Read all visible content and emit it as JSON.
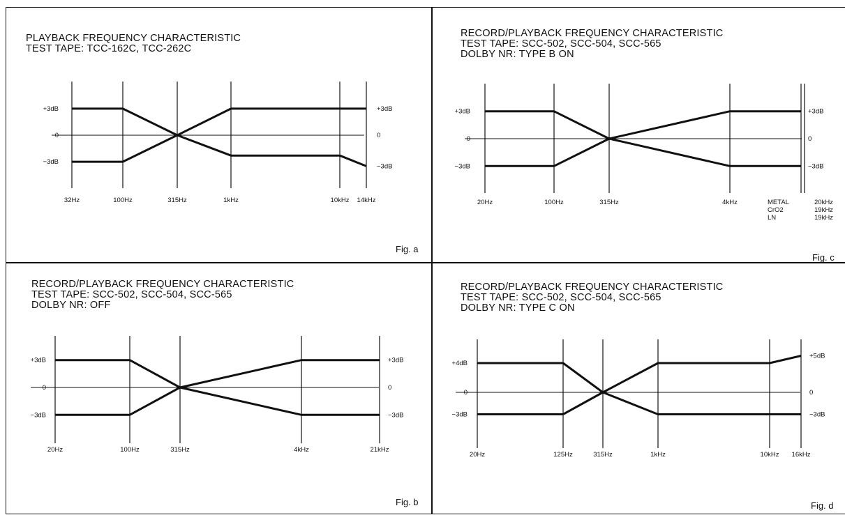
{
  "panels": [
    {
      "id": "a",
      "title_lines": [
        "PLAYBACK FREQUENCY CHARACTERISTIC",
        "TEST TAPE: TCC-162C, TCC-262C"
      ],
      "fig_label": "Fig. a",
      "ticks": [
        "32Hz",
        "100Hz",
        "315Hz",
        "1kHz",
        "10kHz",
        "14kHz"
      ],
      "left_labels": [
        "+3dB",
        "0",
        "−3dB"
      ],
      "right_labels": [
        "+3dB",
        "0",
        "−3dB"
      ],
      "upper_curve_db": [
        3,
        3,
        0,
        3,
        3,
        3
      ],
      "lower_curve_db": [
        -3,
        -3,
        0,
        -2.3,
        -2.3,
        -3.5
      ],
      "extra_labels": []
    },
    {
      "id": "c",
      "title_lines": [
        "RECORD/PLAYBACK FREQUENCY CHARACTERISTIC",
        "TEST TAPE: SCC-502, SCC-504, SCC-565",
        "DOLBY NR: TYPE B ON"
      ],
      "fig_label": "Fig. c",
      "ticks": [
        "20Hz",
        "100Hz",
        "315Hz",
        "4kHz"
      ],
      "left_labels": [
        "+3dB",
        "0",
        "−3dB"
      ],
      "right_labels": [
        "+3dB",
        "0",
        "−3dB"
      ],
      "upper_curve_db": [
        3,
        3,
        0,
        3,
        3
      ],
      "lower_curve_db": [
        -3,
        -3,
        0,
        -3,
        -3
      ],
      "extra_labels": [
        {
          "tape": "METAL",
          "freq": "20kHz"
        },
        {
          "tape": "CrO2",
          "freq": "19kHz"
        },
        {
          "tape": "LN",
          "freq": "19kHz"
        }
      ]
    },
    {
      "id": "b",
      "title_lines": [
        "RECORD/PLAYBACK FREQUENCY CHARACTERISTIC",
        "TEST TAPE: SCC-502, SCC-504, SCC-565",
        "DOLBY NR: OFF"
      ],
      "fig_label": "Fig. b",
      "ticks": [
        "20Hz",
        "100Hz",
        "315Hz",
        "4kHz",
        "21kHz"
      ],
      "left_labels": [
        "+3dB",
        "0",
        "−3dB"
      ],
      "right_labels": [
        "+3dB",
        "0",
        "−3dB"
      ],
      "upper_curve_db": [
        3,
        3,
        0,
        3,
        3
      ],
      "lower_curve_db": [
        -3,
        -3,
        0,
        -3,
        -3
      ],
      "extra_labels": []
    },
    {
      "id": "d",
      "title_lines": [
        "RECORD/PLAYBACK FREQUENCY CHARACTERISTIC",
        "TEST TAPE: SCC-502, SCC-504, SCC-565",
        "DOLBY NR: TYPE C ON"
      ],
      "fig_label": "Fig. d",
      "ticks": [
        "20Hz",
        "125Hz",
        "315Hz",
        "1kHz",
        "10kHz",
        "16kHz"
      ],
      "left_labels": [
        "+4dB",
        "0",
        "−3dB"
      ],
      "right_labels": [
        "+5dB",
        "0",
        "−3dB"
      ],
      "upper_curve_db": [
        4,
        4,
        0,
        4,
        4,
        5
      ],
      "lower_curve_db": [
        -3,
        -3,
        0,
        -3,
        -3,
        -3
      ],
      "extra_labels": []
    }
  ]
}
